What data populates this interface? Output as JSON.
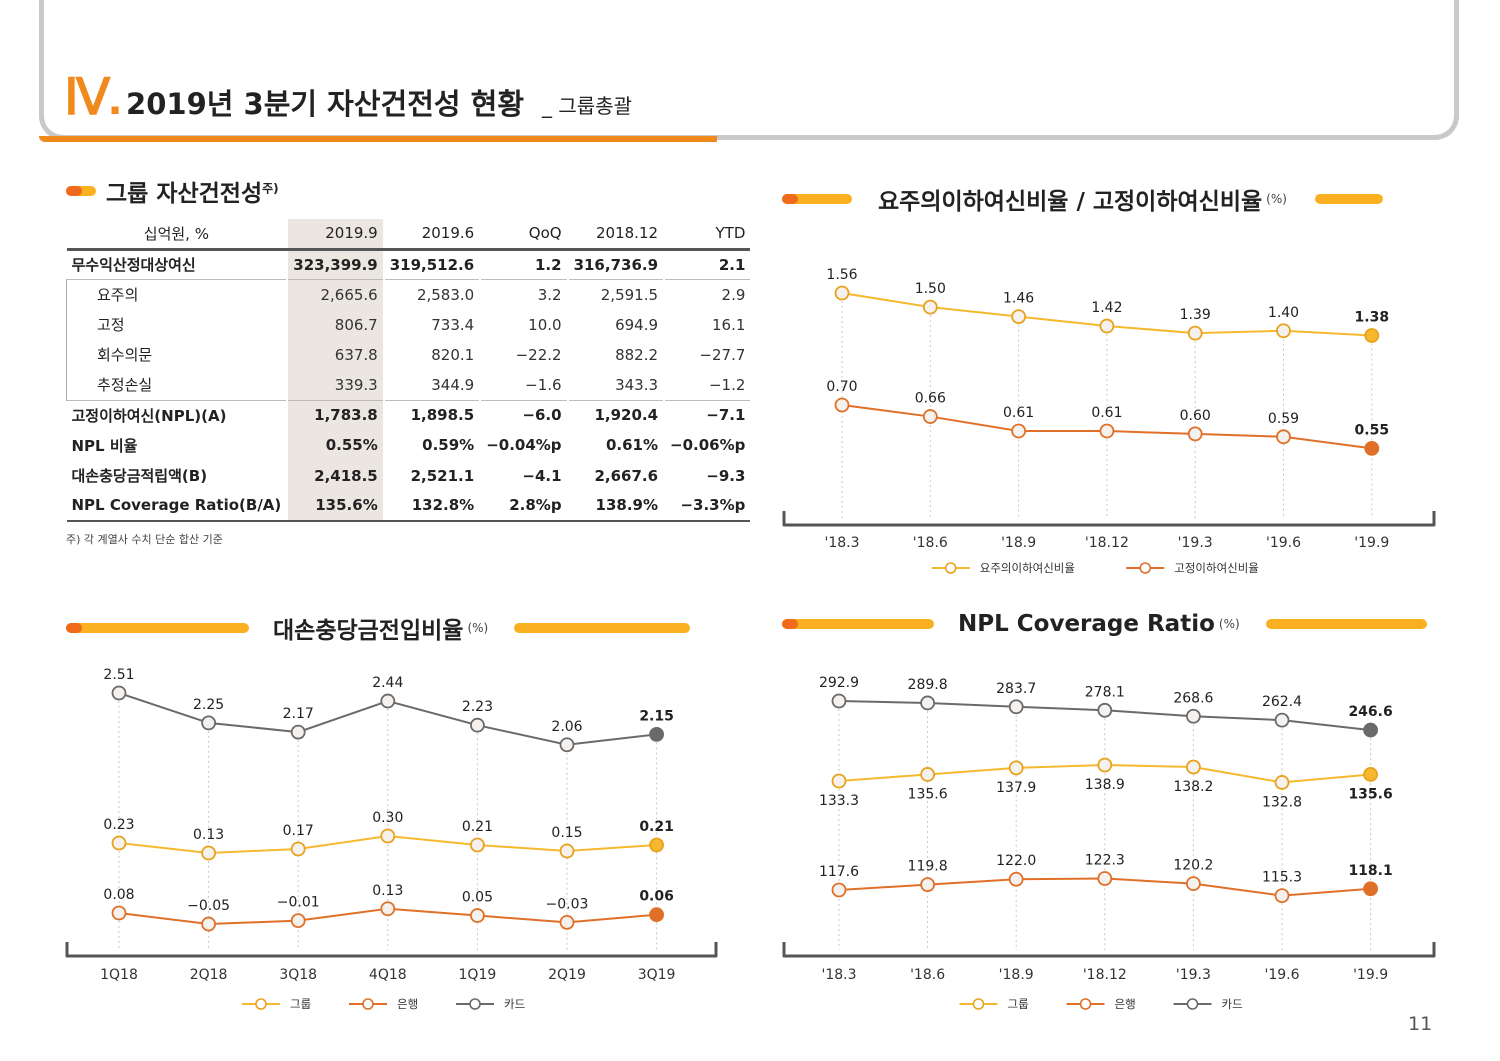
{
  "header": {
    "roman": "Ⅳ.",
    "title": "2019년 3분기 자산건전성 현황",
    "subtitle": "_ 그룹총괄"
  },
  "table_section": {
    "title": "그룹 자산건전성",
    "title_sup": "주)",
    "note": "주) 각 계열사 수치 단순 합산 기준"
  },
  "table": {
    "headers": [
      "십억원, %",
      "2019.9",
      "2019.6",
      "QoQ",
      "2018.12",
      "YTD"
    ],
    "rows": [
      [
        "무수익산정대상여신",
        "323,399.9",
        "319,512.6",
        "1.2",
        "316,736.9",
        "2.1"
      ],
      [
        "요주의",
        "2,665.6",
        "2,583.0",
        "3.2",
        "2,591.5",
        "2.9"
      ],
      [
        "고정",
        "806.7",
        "733.4",
        "10.0",
        "694.9",
        "16.1"
      ],
      [
        "회수의문",
        "637.8",
        "820.1",
        "-22.2",
        "882.2",
        "-27.7"
      ],
      [
        "추정손실",
        "339.3",
        "344.9",
        "-1.6",
        "343.3",
        "-1.2"
      ],
      [
        "고정이하여신(NPL)(A)",
        "1,783.8",
        "1,898.5",
        "-6.0",
        "1,920.4",
        "-7.1"
      ],
      [
        "NPL 비율",
        "0.55%",
        "0.59%",
        "-0.04%p",
        "0.61%",
        "-0.06%p"
      ],
      [
        "대손충당금적립액(B)",
        "2,418.5",
        "2,521.1",
        "-4.1",
        "2,667.6",
        "-9.3"
      ],
      [
        "NPL Coverage Ratio(B/A)",
        "135.6%",
        "132.8%",
        "2.8%p",
        "138.9%",
        "-3.3%p"
      ]
    ]
  },
  "page_number": "11",
  "colors": {
    "orange": "#f08a1c",
    "yellow": "#fbb021",
    "bank_line": "#e07028",
    "gray_line": "#6a6a6a"
  },
  "chart_data": [
    {
      "id": "npl-ratio",
      "type": "line",
      "title": "요주의이하여신비율 / 고정이하여신비율",
      "unit": "(%)",
      "categories": [
        "'18.3",
        "'18.6",
        "'18.9",
        "'18.12",
        "'19.3",
        "'19.6",
        "'19.9"
      ],
      "series": [
        {
          "name": "요주의이하여신비율",
          "color": "#f5b82e",
          "values": [
            1.56,
            1.5,
            1.46,
            1.42,
            1.39,
            1.4,
            1.38
          ],
          "labels": [
            "1.56",
            "1.50",
            "1.46",
            "1.42",
            "1.39",
            "1.40",
            "1.38"
          ],
          "label_pos": "above"
        },
        {
          "name": "고정이하여신비율",
          "color": "#e07028",
          "values": [
            0.7,
            0.66,
            0.61,
            0.61,
            0.6,
            0.59,
            0.55
          ],
          "labels": [
            "0.70",
            "0.66",
            "0.61",
            "0.61",
            "0.60",
            "0.59",
            "0.55"
          ],
          "label_pos": "above"
        }
      ],
      "legend": "bottom"
    },
    {
      "id": "credit-cost",
      "type": "line",
      "title": "대손충당금전입비율",
      "unit": "(%)",
      "categories": [
        "1Q18",
        "2Q18",
        "3Q18",
        "4Q18",
        "1Q19",
        "2Q19",
        "3Q19"
      ],
      "series": [
        {
          "name": "카드",
          "color": "#6a6a6a",
          "values": [
            2.51,
            2.25,
            2.17,
            2.44,
            2.23,
            2.06,
            2.15
          ],
          "labels": [
            "2.51",
            "2.25",
            "2.17",
            "2.44",
            "2.23",
            "2.06",
            "2.15"
          ],
          "label_pos": "above"
        },
        {
          "name": "그룹",
          "color": "#f5b82e",
          "values": [
            0.23,
            0.13,
            0.17,
            0.3,
            0.21,
            0.15,
            0.21
          ],
          "labels": [
            "0.23",
            "0.13",
            "0.17",
            "0.30",
            "0.21",
            "0.15",
            "0.21"
          ],
          "label_pos": "above"
        },
        {
          "name": "은행",
          "color": "#e07028",
          "values": [
            0.08,
            -0.05,
            -0.01,
            0.13,
            0.05,
            -0.03,
            0.06
          ],
          "labels": [
            "0.08",
            "-0.05",
            "-0.01",
            "0.13",
            "0.05",
            "-0.03",
            "0.06"
          ],
          "label_pos": "above"
        }
      ],
      "legend_order": [
        "그룹",
        "은행",
        "카드"
      ],
      "legend": "bottom"
    },
    {
      "id": "npl-coverage",
      "type": "line",
      "title": "NPL Coverage Ratio",
      "unit": "(%)",
      "categories": [
        "'18.3",
        "'18.6",
        "'18.9",
        "'18.12",
        "'19.3",
        "'19.6",
        "'19.9"
      ],
      "series": [
        {
          "name": "카드",
          "color": "#6a6a6a",
          "values": [
            292.9,
            289.8,
            283.7,
            278.1,
            268.6,
            262.4,
            246.6
          ],
          "labels": [
            "292.9",
            "289.8",
            "283.7",
            "278.1",
            "268.6",
            "262.4",
            "246.6"
          ],
          "label_pos": "above"
        },
        {
          "name": "그룹",
          "color": "#f5b82e",
          "values": [
            133.3,
            135.6,
            137.9,
            138.9,
            138.2,
            132.8,
            135.6
          ],
          "labels": [
            "133.3",
            "135.6",
            "137.9",
            "138.9",
            "138.2",
            "132.8",
            "135.6"
          ],
          "label_pos": "below"
        },
        {
          "name": "은행",
          "color": "#e07028",
          "values": [
            117.6,
            119.8,
            122.0,
            122.3,
            120.2,
            115.3,
            118.1
          ],
          "labels": [
            "117.6",
            "119.8",
            "122.0",
            "122.3",
            "120.2",
            "115.3",
            "118.1"
          ],
          "label_pos": "above"
        }
      ],
      "legend_order": [
        "그룹",
        "은행",
        "카드"
      ],
      "legend": "bottom"
    }
  ]
}
